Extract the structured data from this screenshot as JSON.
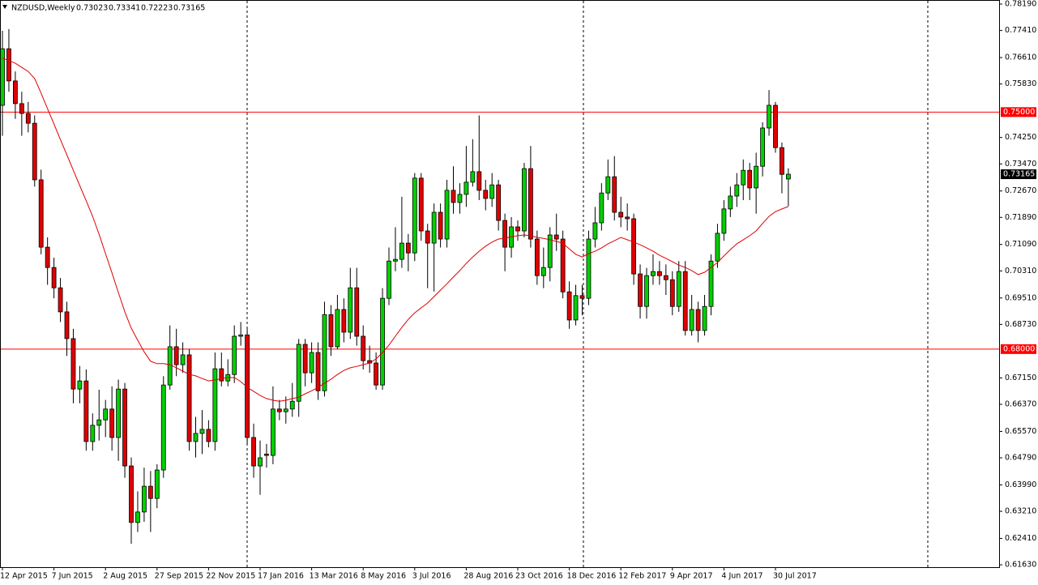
{
  "chart_data": {
    "type": "candlestick",
    "title": "NZDUSD,Weekly",
    "categories": [
      "12 Apr 2015",
      null,
      null,
      null,
      null,
      null,
      null,
      null,
      "7 Jun 2015",
      null,
      null,
      null,
      null,
      null,
      null,
      null,
      "2 Aug 2015",
      null,
      null,
      null,
      null,
      null,
      null,
      null,
      "27 Sep 2015",
      null,
      null,
      null,
      null,
      null,
      null,
      null,
      "22 Nov 2015",
      null,
      null,
      null,
      null,
      null,
      null,
      null,
      "17 Jan 2016",
      null,
      null,
      null,
      null,
      null,
      null,
      null,
      "13 Mar 2016",
      null,
      null,
      null,
      null,
      null,
      null,
      null,
      "8 May 2016",
      null,
      null,
      null,
      null,
      null,
      null,
      null,
      "3 Jul 2016",
      null,
      null,
      null,
      null,
      null,
      null,
      null,
      "28 Aug 2016",
      null,
      null,
      null,
      null,
      null,
      null,
      null,
      "23 Oct 2016",
      null,
      null,
      null,
      null,
      null,
      null,
      null,
      "18 Dec 2016",
      null,
      null,
      null,
      null,
      null,
      null,
      null,
      "12 Feb 2017",
      null,
      null,
      null,
      null,
      null,
      null,
      null,
      "9 Apr 2017",
      null,
      null,
      null,
      null,
      null,
      null,
      null,
      "4 Jun 2017",
      null,
      null,
      null,
      null,
      null,
      null,
      null,
      "30 Jul 2017",
      null,
      null
    ],
    "open": [
      0.752,
      0.7687,
      0.7592,
      0.7525,
      0.7496,
      0.7467,
      0.73,
      0.7101,
      0.7041,
      0.6981,
      0.691,
      0.6831,
      0.6682,
      0.6706,
      0.6527,
      0.6575,
      0.6591,
      0.6623,
      0.6539,
      0.6682,
      0.6455,
      0.6288,
      0.6319,
      0.6395,
      0.6359,
      0.6443,
      0.6694,
      0.6807,
      0.6754,
      0.6783,
      0.6527,
      0.6551,
      0.6563,
      0.6527,
      0.6742,
      0.6706,
      0.6725,
      0.6838,
      0.6842,
      0.6539,
      0.6455,
      0.649,
      0.6486,
      0.6623,
      0.6615,
      0.6623,
      0.6646,
      0.6814,
      0.673,
      0.679,
      0.6677,
      0.6902,
      0.6807,
      0.6917,
      0.685,
      0.6981,
      0.6838,
      0.6766,
      0.6759,
      0.6694,
      0.695,
      0.706,
      0.7065,
      0.7113,
      0.7084,
      0.7305,
      0.7149,
      0.7113,
      0.7204,
      0.7125,
      0.7269,
      0.7233,
      0.7257,
      0.7293,
      0.7324,
      0.7269,
      0.7245,
      0.7285,
      0.718,
      0.7101,
      0.7161,
      0.7149,
      0.7333,
      0.7125,
      0.7017,
      0.7041,
      0.7137,
      0.7125,
      0.6969,
      0.6886,
      0.6958,
      0.695,
      0.7125,
      0.7173,
      0.7261,
      0.7309,
      0.7204,
      0.719,
      0.7185,
      0.7022,
      0.6926,
      0.7017,
      0.7029,
      0.7017,
      0.7005,
      0.6926,
      0.7029,
      0.6855,
      0.6917,
      0.6855,
      0.6926,
      0.706,
      0.7142,
      0.7214,
      0.7252,
      0.7285,
      0.7328,
      0.7276,
      0.734,
      0.7453,
      0.752,
      0.7395,
      0.73023
    ],
    "high": [
      0.774,
      0.7745,
      0.762,
      0.756,
      0.753,
      0.749,
      0.733,
      0.713,
      0.707,
      0.701,
      0.694,
      0.686,
      0.675,
      0.674,
      0.661,
      0.668,
      0.665,
      0.669,
      0.671,
      0.67,
      0.648,
      0.638,
      0.645,
      0.644,
      0.646,
      0.672,
      0.687,
      0.686,
      0.682,
      0.68,
      0.66,
      0.662,
      0.659,
      0.679,
      0.679,
      0.677,
      0.687,
      0.688,
      0.686,
      0.658,
      0.653,
      0.652,
      0.669,
      0.665,
      0.666,
      0.67,
      0.683,
      0.683,
      0.682,
      0.682,
      0.694,
      0.693,
      0.696,
      0.695,
      0.704,
      0.704,
      0.687,
      0.681,
      0.679,
      0.698,
      0.71,
      0.716,
      0.725,
      0.714,
      0.732,
      0.732,
      0.717,
      0.723,
      0.723,
      0.73,
      0.734,
      0.729,
      0.74,
      0.742,
      0.749,
      0.73,
      0.732,
      0.73,
      0.72,
      0.719,
      0.718,
      0.735,
      0.74,
      0.715,
      0.71,
      0.716,
      0.72,
      0.715,
      0.7,
      0.699,
      0.699,
      0.715,
      0.722,
      0.729,
      0.736,
      0.737,
      0.725,
      0.723,
      0.72,
      0.705,
      0.704,
      0.708,
      0.706,
      0.705,
      0.703,
      0.706,
      0.706,
      0.696,
      0.694,
      0.696,
      0.708,
      0.717,
      0.724,
      0.728,
      0.732,
      0.736,
      0.735,
      0.738,
      0.747,
      0.7565,
      0.753,
      0.741,
      0.73341
    ],
    "low": [
      0.743,
      0.756,
      0.748,
      0.743,
      0.744,
      0.728,
      0.708,
      0.699,
      0.695,
      0.688,
      0.678,
      0.664,
      0.664,
      0.65,
      0.65,
      0.653,
      0.654,
      0.65,
      0.647,
      0.642,
      0.6225,
      0.626,
      0.629,
      0.626,
      0.633,
      0.642,
      0.668,
      0.672,
      0.673,
      0.65,
      0.648,
      0.649,
      0.651,
      0.65,
      0.669,
      0.669,
      0.67,
      0.681,
      0.652,
      0.642,
      0.637,
      0.645,
      0.646,
      0.659,
      0.658,
      0.66,
      0.66,
      0.669,
      0.67,
      0.665,
      0.666,
      0.678,
      0.68,
      0.682,
      0.683,
      0.681,
      0.674,
      0.673,
      0.668,
      0.668,
      0.693,
      0.703,
      0.704,
      0.703,
      0.706,
      0.712,
      0.698,
      0.697,
      0.71,
      0.71,
      0.72,
      0.72,
      0.722,
      0.728,
      0.724,
      0.721,
      0.722,
      0.715,
      0.703,
      0.707,
      0.712,
      0.713,
      0.71,
      0.699,
      0.698,
      0.7,
      0.709,
      0.695,
      0.686,
      0.687,
      0.69,
      0.693,
      0.71,
      0.715,
      0.724,
      0.718,
      0.716,
      0.715,
      0.699,
      0.689,
      0.689,
      0.699,
      0.699,
      0.696,
      0.69,
      0.691,
      0.684,
      0.684,
      0.682,
      0.684,
      0.69,
      0.704,
      0.712,
      0.719,
      0.722,
      0.724,
      0.724,
      0.72,
      0.731,
      0.743,
      0.738,
      0.726,
      0.72223
    ],
    "close": [
      0.7687,
      0.7592,
      0.7525,
      0.7496,
      0.7467,
      0.73,
      0.7101,
      0.7041,
      0.6981,
      0.691,
      0.6831,
      0.6682,
      0.6706,
      0.6527,
      0.6575,
      0.6591,
      0.6623,
      0.6539,
      0.6682,
      0.6455,
      0.6288,
      0.6319,
      0.6395,
      0.6359,
      0.6443,
      0.6694,
      0.6807,
      0.6754,
      0.6783,
      0.6527,
      0.6551,
      0.6563,
      0.6527,
      0.6742,
      0.6706,
      0.6725,
      0.6838,
      0.6842,
      0.6539,
      0.6455,
      0.6479,
      0.6486,
      0.6623,
      0.6615,
      0.6623,
      0.6646,
      0.6814,
      0.673,
      0.679,
      0.6677,
      0.6902,
      0.6807,
      0.6917,
      0.685,
      0.6981,
      0.6838,
      0.6766,
      0.6759,
      0.6694,
      0.695,
      0.706,
      0.7065,
      0.7113,
      0.7084,
      0.7305,
      0.7149,
      0.7113,
      0.7204,
      0.7125,
      0.7269,
      0.7233,
      0.7257,
      0.7293,
      0.7324,
      0.7269,
      0.7245,
      0.7285,
      0.718,
      0.7101,
      0.7161,
      0.7149,
      0.7333,
      0.7125,
      0.7017,
      0.7041,
      0.7137,
      0.7125,
      0.6969,
      0.6886,
      0.6958,
      0.695,
      0.7125,
      0.7173,
      0.7261,
      0.7309,
      0.7204,
      0.719,
      0.7185,
      0.7022,
      0.6926,
      0.7017,
      0.7029,
      0.7017,
      0.7005,
      0.6926,
      0.7029,
      0.6855,
      0.6917,
      0.6855,
      0.6926,
      0.706,
      0.7142,
      0.7214,
      0.7252,
      0.7285,
      0.7328,
      0.7276,
      0.734,
      0.7453,
      0.752,
      0.7395,
      0.7316,
      0.73165
    ],
    "up_color": "#00d000",
    "down_color": "#e00000",
    "ma": {
      "color": "#e00000",
      "values": [
        0.7659,
        0.7652,
        0.7644,
        0.7632,
        0.762,
        0.7599,
        0.7556,
        0.751,
        0.7465,
        0.7419,
        0.7374,
        0.7328,
        0.7283,
        0.7238,
        0.7192,
        0.7139,
        0.7082,
        0.7025,
        0.6967,
        0.691,
        0.6862,
        0.6826,
        0.6792,
        0.6764,
        0.6757,
        0.6757,
        0.6754,
        0.6745,
        0.6735,
        0.6725,
        0.6721,
        0.6713,
        0.6706,
        0.6709,
        0.6713,
        0.6716,
        0.6716,
        0.6704,
        0.6687,
        0.6675,
        0.6663,
        0.6654,
        0.6649,
        0.6646,
        0.6649,
        0.6654,
        0.6658,
        0.6668,
        0.6677,
        0.6687,
        0.6699,
        0.6711,
        0.6725,
        0.6737,
        0.6745,
        0.6749,
        0.6754,
        0.6759,
        0.6771,
        0.679,
        0.6812,
        0.6838,
        0.6864,
        0.6888,
        0.6907,
        0.6922,
        0.6936,
        0.6955,
        0.6974,
        0.6993,
        0.7013,
        0.7032,
        0.7053,
        0.7072,
        0.7089,
        0.7104,
        0.7116,
        0.7125,
        0.7127,
        0.7132,
        0.7135,
        0.7137,
        0.7135,
        0.713,
        0.7127,
        0.7123,
        0.7118,
        0.7113,
        0.7096,
        0.708,
        0.7072,
        0.7082,
        0.7089,
        0.7099,
        0.7111,
        0.712,
        0.713,
        0.7123,
        0.7116,
        0.7108,
        0.7099,
        0.7089,
        0.7077,
        0.7068,
        0.7058,
        0.7048,
        0.7041,
        0.7032,
        0.702,
        0.7027,
        0.7041,
        0.7056,
        0.7075,
        0.7094,
        0.7111,
        0.7123,
        0.7135,
        0.7149,
        0.7171,
        0.7192,
        0.7206,
        0.7214,
        0.7221
      ]
    },
    "levels": [
      {
        "value": 0.75,
        "label": "0.75000"
      },
      {
        "value": 0.68,
        "label": "0.68000"
      }
    ],
    "level_color": "#ff0000",
    "ylim": [
      0.6156,
      0.7831
    ],
    "yticks": [
      {
        "value": 0.7819,
        "label": "0.78190"
      },
      {
        "value": 0.7741,
        "label": "0.77410"
      },
      {
        "value": 0.7661,
        "label": "0.76610"
      },
      {
        "value": 0.7583,
        "label": "0.75830"
      },
      {
        "value": 0.7425,
        "label": "0.74250"
      },
      {
        "value": 0.7347,
        "label": "0.73470"
      },
      {
        "value": 0.7267,
        "label": "0.72670"
      },
      {
        "value": 0.7189,
        "label": "0.71890"
      },
      {
        "value": 0.7109,
        "label": "0.71090"
      },
      {
        "value": 0.7031,
        "label": "0.70310"
      },
      {
        "value": 0.6951,
        "label": "0.69510"
      },
      {
        "value": 0.6873,
        "label": "0.68730"
      },
      {
        "value": 0.6715,
        "label": "0.67150"
      },
      {
        "value": 0.6637,
        "label": "0.66370"
      },
      {
        "value": 0.6557,
        "label": "0.65570"
      },
      {
        "value": 0.6479,
        "label": "0.64790"
      },
      {
        "value": 0.6399,
        "label": "0.63990"
      },
      {
        "value": 0.6321,
        "label": "0.63210"
      },
      {
        "value": 0.6241,
        "label": "0.62410"
      },
      {
        "value": 0.6163,
        "label": "0.61630"
      }
    ]
  }
}
